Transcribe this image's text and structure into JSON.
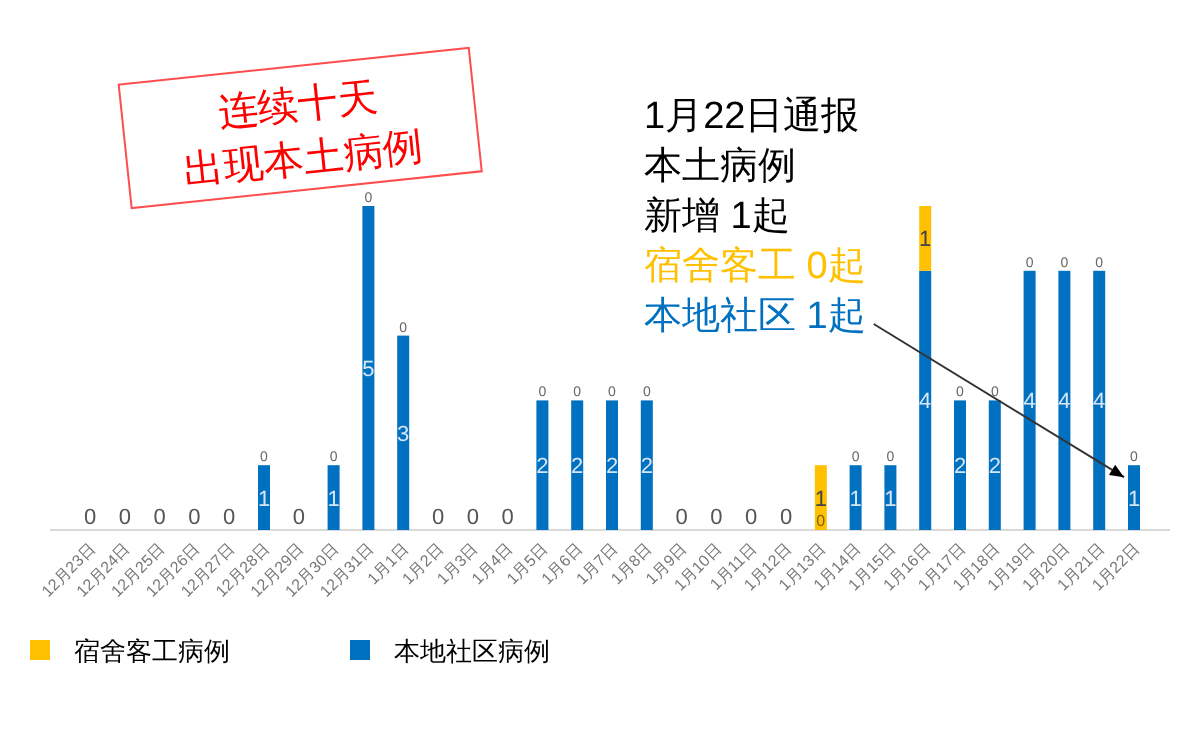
{
  "chart_data": {
    "type": "bar",
    "stacked": true,
    "legend": "bottom left",
    "categories": [
      "12月23日",
      "12月24日",
      "12月25日",
      "12月26日",
      "12月27日",
      "12月28日",
      "12月29日",
      "12月30日",
      "12月31日",
      "1月1日",
      "1月2日",
      "1月3日",
      "1月4日",
      "1月5日",
      "1月6日",
      "1月7日",
      "1月8日",
      "1月9日",
      "1月10日",
      "1月11日",
      "1月12日",
      "1月13日",
      "1月14日",
      "1月15日",
      "1月16日",
      "1月17日",
      "1月18日",
      "1月19日",
      "1月20日",
      "1月21日",
      "1月22日"
    ],
    "series": [
      {
        "name": "本地社区病例",
        "color": "#0070c0",
        "values": [
          0,
          0,
          0,
          0,
          0,
          1,
          0,
          1,
          5,
          3,
          0,
          0,
          0,
          2,
          2,
          2,
          2,
          0,
          0,
          0,
          0,
          0,
          1,
          1,
          4,
          2,
          2,
          4,
          4,
          4,
          1
        ],
        "value_labels": [
          "0",
          "0",
          "0",
          "0",
          "0",
          "1",
          "0",
          "1",
          "5",
          "3",
          "0",
          "0",
          "0",
          "2",
          "2",
          "2",
          "2",
          "0",
          "0",
          "0",
          "0",
          "0",
          "1",
          "1",
          "4",
          "2",
          "2",
          "4",
          "4",
          "4",
          "1"
        ]
      },
      {
        "name": "宿舍客工病例",
        "color": "#ffc000",
        "values": [
          0,
          0,
          0,
          0,
          0,
          0,
          0,
          0,
          0,
          0,
          0,
          0,
          0,
          0,
          0,
          0,
          0,
          0,
          0,
          0,
          0,
          1,
          0,
          0,
          1,
          0,
          0,
          0,
          0,
          0,
          0
        ],
        "value_labels": [
          null,
          null,
          null,
          null,
          null,
          "0",
          null,
          "0",
          "0",
          "0",
          null,
          null,
          null,
          "0",
          "0",
          "0",
          "0",
          null,
          null,
          null,
          null,
          "1",
          "0",
          "0",
          "1",
          "0",
          "0",
          "0",
          "0",
          "0",
          "0"
        ]
      }
    ],
    "annotations": [
      "连续十天",
      "出现本土病例",
      "1月22日通报",
      "本土病例",
      "新增 1起",
      "宿舍客工 0起",
      {
        "text": "本地社区 1起",
        "x": "1月22日",
        "y": 1
      }
    ]
  }
}
